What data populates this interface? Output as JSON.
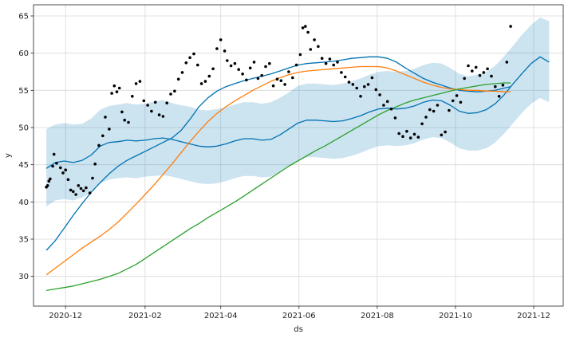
{
  "chart_data": {
    "type": "line",
    "xlabel": "ds",
    "ylabel": "y",
    "x_range": [
      "2020-11-06",
      "2021-12-24"
    ],
    "ylim": [
      26.0,
      66.5
    ],
    "grid": true,
    "x_ticks": [
      "2020-12-01",
      "2021-02-01",
      "2021-04-01",
      "2021-06-01",
      "2021-08-01",
      "2021-10-01",
      "2021-12-01"
    ],
    "x_tick_labels": [
      "2020-12",
      "2021-02",
      "2021-04",
      "2021-06",
      "2021-08",
      "2021-10",
      "2021-12"
    ],
    "y_ticks": [
      30,
      35,
      40,
      45,
      50,
      55,
      60,
      65
    ],
    "y_tick_labels": [
      "30",
      "35",
      "40",
      "45",
      "50",
      "55",
      "60",
      "65"
    ],
    "colors": {
      "forecast": "#0072B2",
      "band": "#0072B2",
      "orange": "#ff7f0e",
      "green": "#2ca02c",
      "points": "#000000",
      "grid": "#d9d9d9"
    },
    "series": [
      {
        "color": "#0072B2",
        "x": [
          "2020-11-16",
          "2020-11-23",
          "2020-11-30",
          "2020-12-07",
          "2020-12-14",
          "2020-12-21",
          "2020-12-28",
          "2021-01-04",
          "2021-01-11",
          "2021-01-18",
          "2021-01-25",
          "2021-02-01",
          "2021-02-08",
          "2021-02-15",
          "2021-02-22",
          "2021-03-01",
          "2021-03-08",
          "2021-03-15",
          "2021-03-22",
          "2021-03-29",
          "2021-04-05",
          "2021-04-12",
          "2021-04-19",
          "2021-04-26",
          "2021-05-03",
          "2021-05-10",
          "2021-05-17",
          "2021-05-24",
          "2021-05-31",
          "2021-06-07",
          "2021-06-14",
          "2021-06-21",
          "2021-06-28",
          "2021-07-05",
          "2021-07-12",
          "2021-07-19",
          "2021-07-26",
          "2021-08-02",
          "2021-08-09",
          "2021-08-16",
          "2021-08-23",
          "2021-08-30",
          "2021-09-06",
          "2021-09-13",
          "2021-09-20",
          "2021-09-27",
          "2021-10-04",
          "2021-10-11",
          "2021-10-18",
          "2021-10-25",
          "2021-11-01",
          "2021-11-08",
          "2021-11-15",
          "2021-11-22",
          "2021-11-29",
          "2021-12-06",
          "2021-12-13"
        ],
        "y": [
          44.5,
          45.3,
          45.5,
          45.3,
          45.6,
          46.3,
          47.5,
          48.0,
          48.1,
          48.3,
          48.2,
          48.3,
          48.5,
          48.6,
          48.4,
          48.1,
          47.8,
          47.5,
          47.4,
          47.5,
          47.8,
          48.2,
          48.5,
          48.5,
          48.3,
          48.4,
          49.0,
          49.8,
          50.6,
          51.0,
          51.0,
          50.9,
          50.8,
          50.9,
          51.2,
          51.6,
          52.1,
          52.5,
          52.6,
          52.5,
          52.6,
          52.9,
          53.4,
          53.7,
          53.6,
          53.0,
          52.2,
          51.9,
          52.0,
          52.4,
          53.2,
          54.4,
          55.9,
          57.3,
          58.6,
          59.5,
          58.8
        ]
      },
      {
        "color": "#0072B2",
        "x": [
          "2020-11-16",
          "2020-11-23",
          "2020-11-30",
          "2020-12-07",
          "2020-12-14",
          "2020-12-21",
          "2020-12-28",
          "2021-01-04",
          "2021-01-11",
          "2021-01-18",
          "2021-01-25",
          "2021-02-01",
          "2021-02-08",
          "2021-02-15",
          "2021-02-22",
          "2021-03-01",
          "2021-03-08",
          "2021-03-15",
          "2021-03-22",
          "2021-03-29",
          "2021-04-05",
          "2021-04-12",
          "2021-04-19",
          "2021-04-26",
          "2021-05-03",
          "2021-05-10",
          "2021-05-17",
          "2021-05-24",
          "2021-05-31",
          "2021-06-07",
          "2021-06-14",
          "2021-06-21",
          "2021-06-28",
          "2021-07-05",
          "2021-07-12",
          "2021-07-19",
          "2021-07-26",
          "2021-08-02",
          "2021-08-09",
          "2021-08-16",
          "2021-08-23",
          "2021-08-30",
          "2021-09-06",
          "2021-09-13",
          "2021-09-20",
          "2021-09-27",
          "2021-10-04",
          "2021-10-11",
          "2021-10-18",
          "2021-10-25",
          "2021-11-01",
          "2021-11-08",
          "2021-11-13"
        ],
        "y": [
          33.5,
          34.8,
          36.5,
          38.2,
          39.8,
          41.3,
          42.6,
          43.8,
          44.8,
          45.6,
          46.2,
          46.8,
          47.4,
          48.0,
          48.6,
          49.6,
          51.1,
          52.8,
          54.0,
          54.9,
          55.5,
          55.9,
          56.3,
          56.6,
          56.9,
          57.2,
          57.6,
          58.0,
          58.4,
          58.6,
          58.7,
          58.8,
          58.9,
          59.1,
          59.3,
          59.4,
          59.5,
          59.5,
          59.3,
          58.8,
          58.0,
          57.3,
          56.6,
          56.1,
          55.7,
          55.3,
          55.0,
          54.9,
          54.8,
          54.9,
          55.0,
          55.3,
          55.5
        ]
      },
      {
        "color": "#ff7f0e",
        "x": [
          "2020-11-16",
          "2020-11-23",
          "2020-11-30",
          "2020-12-07",
          "2020-12-14",
          "2020-12-21",
          "2020-12-28",
          "2021-01-04",
          "2021-01-11",
          "2021-01-18",
          "2021-01-25",
          "2021-02-01",
          "2021-02-08",
          "2021-02-15",
          "2021-02-22",
          "2021-03-01",
          "2021-03-08",
          "2021-03-15",
          "2021-03-22",
          "2021-03-29",
          "2021-04-05",
          "2021-04-12",
          "2021-04-19",
          "2021-04-26",
          "2021-05-03",
          "2021-05-10",
          "2021-05-17",
          "2021-05-24",
          "2021-05-31",
          "2021-06-07",
          "2021-06-14",
          "2021-06-21",
          "2021-06-28",
          "2021-07-05",
          "2021-07-12",
          "2021-07-19",
          "2021-07-26",
          "2021-08-02",
          "2021-08-09",
          "2021-08-16",
          "2021-08-23",
          "2021-08-30",
          "2021-09-06",
          "2021-09-13",
          "2021-09-20",
          "2021-09-27",
          "2021-10-04",
          "2021-10-11",
          "2021-10-18",
          "2021-10-25",
          "2021-11-01",
          "2021-11-08",
          "2021-11-13"
        ],
        "y": [
          30.2,
          31.1,
          32.0,
          32.9,
          33.8,
          34.6,
          35.4,
          36.3,
          37.3,
          38.5,
          39.7,
          41.0,
          42.3,
          43.7,
          45.1,
          46.6,
          48.1,
          49.5,
          50.8,
          51.9,
          52.8,
          53.6,
          54.3,
          55.0,
          55.6,
          56.2,
          56.7,
          57.1,
          57.4,
          57.6,
          57.7,
          57.8,
          57.9,
          58.0,
          58.1,
          58.2,
          58.2,
          58.2,
          58.0,
          57.6,
          57.1,
          56.6,
          56.1,
          55.7,
          55.4,
          55.2,
          55.1,
          55.0,
          55.0,
          54.9,
          54.9,
          54.8,
          54.8
        ]
      },
      {
        "color": "#2ca02c",
        "x": [
          "2020-11-16",
          "2020-11-23",
          "2020-11-30",
          "2020-12-07",
          "2020-12-14",
          "2020-12-21",
          "2020-12-28",
          "2021-01-04",
          "2021-01-11",
          "2021-01-18",
          "2021-01-25",
          "2021-02-01",
          "2021-02-08",
          "2021-02-15",
          "2021-02-22",
          "2021-03-01",
          "2021-03-08",
          "2021-03-15",
          "2021-03-22",
          "2021-03-29",
          "2021-04-05",
          "2021-04-12",
          "2021-04-19",
          "2021-04-26",
          "2021-05-03",
          "2021-05-10",
          "2021-05-17",
          "2021-05-24",
          "2021-05-31",
          "2021-06-07",
          "2021-06-14",
          "2021-06-21",
          "2021-06-28",
          "2021-07-05",
          "2021-07-12",
          "2021-07-19",
          "2021-07-26",
          "2021-08-02",
          "2021-08-09",
          "2021-08-16",
          "2021-08-23",
          "2021-08-30",
          "2021-09-06",
          "2021-09-13",
          "2021-09-20",
          "2021-09-27",
          "2021-10-04",
          "2021-10-11",
          "2021-10-18",
          "2021-10-25",
          "2021-11-01",
          "2021-11-08",
          "2021-11-13"
        ],
        "y": [
          28.1,
          28.3,
          28.5,
          28.7,
          29.0,
          29.3,
          29.6,
          30.0,
          30.4,
          31.0,
          31.6,
          32.4,
          33.2,
          34.0,
          34.8,
          35.6,
          36.4,
          37.1,
          37.9,
          38.6,
          39.3,
          40.0,
          40.8,
          41.6,
          42.4,
          43.2,
          44.0,
          44.8,
          45.5,
          46.2,
          46.9,
          47.5,
          48.2,
          48.9,
          49.6,
          50.3,
          51.0,
          51.7,
          52.3,
          52.8,
          53.3,
          53.7,
          54.0,
          54.3,
          54.6,
          54.9,
          55.2,
          55.4,
          55.6,
          55.8,
          55.9,
          56.0,
          56.0
        ]
      }
    ],
    "interval": {
      "color": "#0072B2",
      "x": [
        "2020-11-16",
        "2020-11-23",
        "2020-11-30",
        "2020-12-07",
        "2020-12-14",
        "2020-12-21",
        "2020-12-28",
        "2021-01-04",
        "2021-01-11",
        "2021-01-18",
        "2021-01-25",
        "2021-02-01",
        "2021-02-08",
        "2021-02-15",
        "2021-02-22",
        "2021-03-01",
        "2021-03-08",
        "2021-03-15",
        "2021-03-22",
        "2021-03-29",
        "2021-04-05",
        "2021-04-12",
        "2021-04-19",
        "2021-04-26",
        "2021-05-03",
        "2021-05-10",
        "2021-05-17",
        "2021-05-24",
        "2021-05-31",
        "2021-06-07",
        "2021-06-14",
        "2021-06-21",
        "2021-06-28",
        "2021-07-05",
        "2021-07-12",
        "2021-07-19",
        "2021-07-26",
        "2021-08-02",
        "2021-08-09",
        "2021-08-16",
        "2021-08-23",
        "2021-08-30",
        "2021-09-06",
        "2021-09-13",
        "2021-09-20",
        "2021-09-27",
        "2021-10-04",
        "2021-10-11",
        "2021-10-18",
        "2021-10-25",
        "2021-11-01",
        "2021-11-08",
        "2021-11-15",
        "2021-11-22",
        "2021-11-29",
        "2021-12-06",
        "2021-12-13"
      ],
      "upper": [
        49.8,
        50.4,
        50.6,
        50.4,
        50.5,
        51.2,
        52.4,
        52.9,
        53.1,
        53.3,
        53.1,
        53.2,
        53.5,
        53.7,
        53.3,
        53.0,
        52.8,
        52.4,
        52.3,
        52.5,
        52.7,
        53.1,
        53.4,
        53.4,
        53.2,
        53.4,
        54.0,
        54.7,
        55.6,
        55.9,
        55.9,
        55.8,
        55.7,
        55.9,
        56.2,
        56.6,
        57.1,
        57.5,
        57.6,
        57.5,
        57.6,
        57.9,
        58.4,
        58.7,
        58.6,
        58.0,
        57.2,
        56.9,
        57.1,
        57.5,
        58.3,
        59.6,
        61.0,
        62.5,
        63.8,
        64.8,
        64.3
      ],
      "lower": [
        39.4,
        40.2,
        40.4,
        40.2,
        40.6,
        41.3,
        42.5,
        43.0,
        43.2,
        43.3,
        43.2,
        43.4,
        43.5,
        43.6,
        43.4,
        43.1,
        42.8,
        42.5,
        42.4,
        42.5,
        42.8,
        43.2,
        43.5,
        43.5,
        43.3,
        43.4,
        44.0,
        44.8,
        45.6,
        46.0,
        46.0,
        45.9,
        45.8,
        45.9,
        46.2,
        46.6,
        47.1,
        47.5,
        47.6,
        47.5,
        47.6,
        47.9,
        48.4,
        48.7,
        48.6,
        48.0,
        47.2,
        46.9,
        46.9,
        47.2,
        48.0,
        49.2,
        50.6,
        52.0,
        53.2,
        54.0,
        53.4
      ]
    },
    "points": {
      "x": [
        "2020-11-16",
        "2020-11-17",
        "2020-11-18",
        "2020-11-19",
        "2020-11-21",
        "2020-11-22",
        "2020-11-24",
        "2020-11-27",
        "2020-11-29",
        "2020-12-01",
        "2020-12-03",
        "2020-12-05",
        "2020-12-07",
        "2020-12-09",
        "2020-12-11",
        "2020-12-13",
        "2020-12-15",
        "2020-12-17",
        "2020-12-20",
        "2020-12-22",
        "2020-12-24",
        "2020-12-27",
        "2020-12-30",
        "2021-01-01",
        "2021-01-04",
        "2021-01-06",
        "2021-01-08",
        "2021-01-10",
        "2021-01-12",
        "2021-01-14",
        "2021-01-16",
        "2021-01-19",
        "2021-01-22",
        "2021-01-25",
        "2021-01-28",
        "2021-01-31",
        "2021-02-03",
        "2021-02-06",
        "2021-02-09",
        "2021-02-12",
        "2021-02-15",
        "2021-02-18",
        "2021-02-21",
        "2021-02-24",
        "2021-02-27",
        "2021-03-02",
        "2021-03-05",
        "2021-03-08",
        "2021-03-11",
        "2021-03-14",
        "2021-03-17",
        "2021-03-20",
        "2021-03-23",
        "2021-03-26",
        "2021-03-29",
        "2021-04-01",
        "2021-04-04",
        "2021-04-06",
        "2021-04-09",
        "2021-04-12",
        "2021-04-15",
        "2021-04-18",
        "2021-04-21",
        "2021-04-24",
        "2021-04-27",
        "2021-04-30",
        "2021-05-03",
        "2021-05-06",
        "2021-05-09",
        "2021-05-12",
        "2021-05-15",
        "2021-05-18",
        "2021-05-21",
        "2021-05-24",
        "2021-05-27",
        "2021-05-30",
        "2021-06-02",
        "2021-06-04",
        "2021-06-06",
        "2021-06-08",
        "2021-06-10",
        "2021-06-13",
        "2021-06-16",
        "2021-06-19",
        "2021-06-22",
        "2021-06-25",
        "2021-06-28",
        "2021-07-01",
        "2021-07-04",
        "2021-07-07",
        "2021-07-10",
        "2021-07-13",
        "2021-07-16",
        "2021-07-19",
        "2021-07-22",
        "2021-07-25",
        "2021-07-28",
        "2021-07-31",
        "2021-08-03",
        "2021-08-06",
        "2021-08-09",
        "2021-08-12",
        "2021-08-15",
        "2021-08-18",
        "2021-08-21",
        "2021-08-24",
        "2021-08-27",
        "2021-08-30",
        "2021-09-02",
        "2021-09-05",
        "2021-09-08",
        "2021-09-11",
        "2021-09-14",
        "2021-09-17",
        "2021-09-20",
        "2021-09-23",
        "2021-09-26",
        "2021-09-29",
        "2021-10-02",
        "2021-10-05",
        "2021-10-08",
        "2021-10-11",
        "2021-10-14",
        "2021-10-17",
        "2021-10-20",
        "2021-10-23",
        "2021-10-26",
        "2021-10-29",
        "2021-11-01",
        "2021-11-04",
        "2021-11-07",
        "2021-11-10",
        "2021-11-13"
      ],
      "y": [
        42.0,
        42.2,
        42.8,
        43.1,
        44.8,
        46.4,
        45.2,
        44.6,
        43.9,
        44.3,
        43.0,
        41.6,
        41.4,
        41.0,
        42.2,
        41.8,
        41.5,
        41.9,
        41.2,
        43.2,
        45.1,
        47.6,
        48.9,
        51.4,
        49.8,
        54.6,
        55.6,
        54.8,
        55.3,
        52.1,
        51.0,
        50.7,
        54.2,
        55.9,
        56.2,
        53.6,
        53.0,
        52.2,
        53.4,
        51.7,
        51.5,
        53.3,
        54.5,
        54.9,
        56.5,
        57.4,
        58.7,
        59.4,
        59.9,
        58.4,
        55.9,
        56.2,
        56.9,
        57.9,
        60.6,
        61.8,
        60.3,
        59.0,
        58.3,
        58.6,
        57.8,
        57.2,
        56.4,
        58.0,
        58.8,
        56.6,
        57.0,
        58.2,
        58.6,
        55.6,
        56.5,
        56.3,
        55.8,
        57.5,
        56.7,
        58.4,
        59.8,
        63.4,
        63.6,
        62.8,
        60.5,
        61.8,
        60.9,
        59.3,
        58.6,
        59.2,
        58.4,
        58.8,
        57.4,
        56.8,
        56.1,
        55.8,
        55.3,
        54.2,
        55.5,
        55.8,
        56.7,
        55.1,
        54.4,
        53.0,
        53.5,
        52.5,
        51.3,
        49.2,
        48.8,
        49.5,
        48.6,
        49.1,
        48.7,
        50.5,
        51.4,
        52.4,
        52.2,
        53.0,
        49.0,
        49.4,
        52.3,
        53.6,
        54.3,
        53.4,
        56.6,
        58.3,
        57.6,
        58.1,
        57.0,
        57.4,
        57.9,
        56.9,
        55.5,
        54.2,
        55.7,
        58.8,
        63.6
      ]
    }
  }
}
